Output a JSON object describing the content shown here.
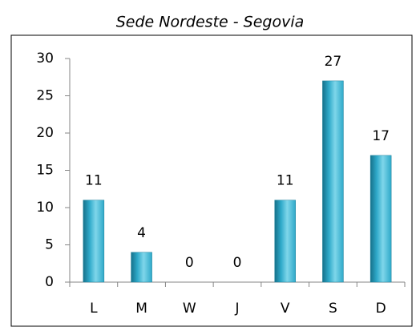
{
  "chart_data": {
    "type": "bar",
    "title": "Sede Nordeste - Segovia",
    "categories": [
      "L",
      "M",
      "W",
      "J",
      "V",
      "S",
      "D"
    ],
    "values": [
      11,
      4,
      0,
      0,
      11,
      27,
      17
    ],
    "color": "#2ea9c9",
    "ylim": [
      0,
      30
    ],
    "yticks": [
      0,
      5,
      10,
      15,
      20,
      25,
      30
    ],
    "grid": false
  }
}
